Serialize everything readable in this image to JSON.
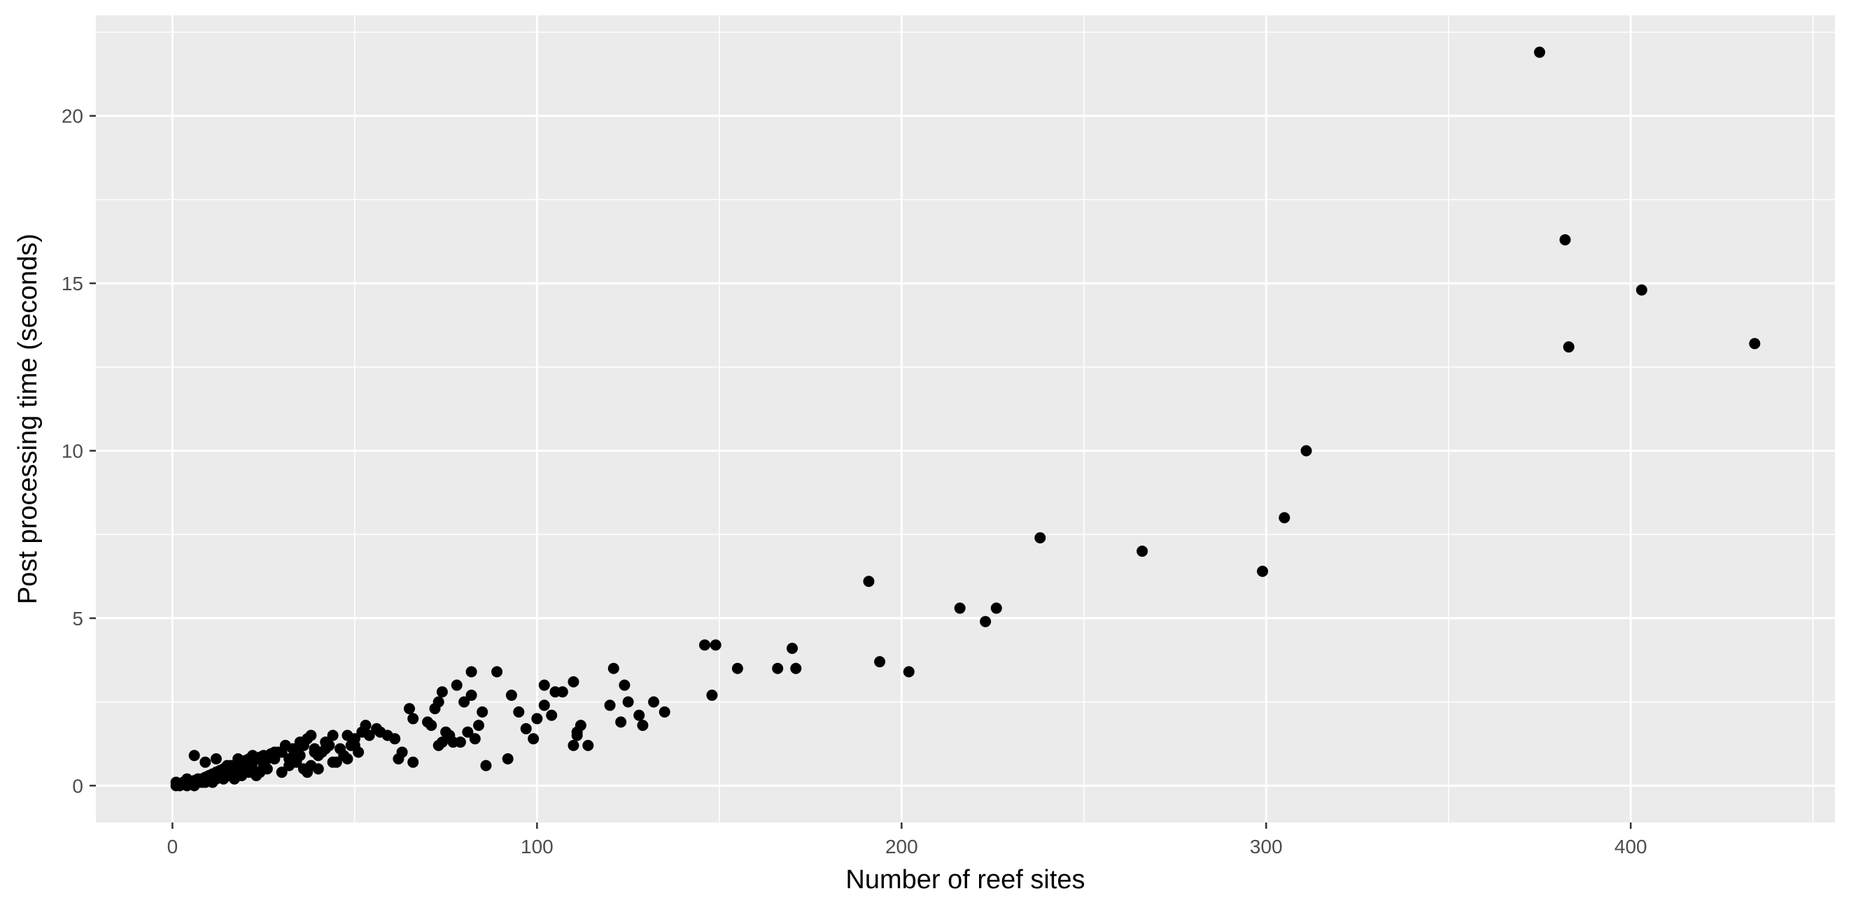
{
  "chart_data": {
    "type": "scatter",
    "title": "",
    "xlabel": "Number of reef sites",
    "ylabel": "Post processing time (seconds)",
    "xlim": [
      -21,
      456
    ],
    "ylim": [
      -1.1,
      23.0
    ],
    "x_ticks": [
      0,
      100,
      200,
      300,
      400
    ],
    "y_ticks": [
      0,
      5,
      10,
      15,
      20
    ],
    "grid": true,
    "legend": "none",
    "colors": {
      "panel": "#EBEBEB",
      "grid": "#FFFFFF",
      "points": "#000000",
      "ticks": "#333333"
    },
    "series": [
      {
        "x": [
          375,
          382,
          383,
          403,
          434,
          311,
          305,
          299,
          266,
          238,
          226,
          223,
          216,
          191,
          194,
          202,
          146,
          149,
          148,
          155,
          166,
          170,
          171,
          121,
          124,
          125,
          120,
          123,
          128,
          129,
          132,
          135,
          110,
          111,
          112,
          114,
          111,
          102,
          105,
          107,
          110,
          93,
          95,
          97,
          99,
          100,
          92,
          102,
          104,
          89,
          86,
          82,
          82,
          78,
          74,
          73,
          72,
          70,
          71,
          80,
          81,
          84,
          85,
          83,
          79,
          74,
          75,
          77,
          76,
          73,
          65,
          66,
          61,
          59,
          57,
          56,
          54,
          53,
          52,
          50,
          49,
          48,
          46,
          44,
          62,
          63,
          66,
          45,
          47,
          50,
          51,
          48,
          42,
          43,
          44,
          41,
          40,
          39,
          38,
          37,
          36,
          35,
          34,
          33,
          32,
          31,
          30,
          40,
          38,
          36,
          34,
          32,
          30,
          28,
          26,
          25,
          24,
          23,
          22,
          21,
          20,
          19,
          18,
          17,
          16,
          15,
          14,
          13,
          12,
          11,
          10,
          9,
          8,
          7,
          6,
          5,
          4,
          3,
          2,
          1,
          1,
          2,
          3,
          4,
          5,
          6,
          7,
          8,
          9,
          10,
          11,
          12,
          13,
          14,
          15,
          16,
          17,
          18,
          19,
          20,
          21,
          22,
          23,
          24,
          25,
          26,
          27,
          28,
          29,
          6,
          9,
          12,
          15,
          18,
          22,
          25,
          28,
          31,
          35,
          37,
          39,
          42
        ],
        "y": [
          21.9,
          16.3,
          13.1,
          14.8,
          13.2,
          10.0,
          8.0,
          6.4,
          7.0,
          7.4,
          5.3,
          4.9,
          5.3,
          6.1,
          3.7,
          3.4,
          4.2,
          4.2,
          2.7,
          3.5,
          3.5,
          4.1,
          3.5,
          3.5,
          3.0,
          2.5,
          2.4,
          1.9,
          2.1,
          1.8,
          2.5,
          2.2,
          1.2,
          1.5,
          1.8,
          1.2,
          1.6,
          3.0,
          2.8,
          2.8,
          3.1,
          2.7,
          2.2,
          1.7,
          1.4,
          2.0,
          0.8,
          2.4,
          2.1,
          3.4,
          0.6,
          3.4,
          2.7,
          3.0,
          2.8,
          2.5,
          2.3,
          1.9,
          1.8,
          2.5,
          1.6,
          1.8,
          2.2,
          1.4,
          1.3,
          1.3,
          1.6,
          1.3,
          1.5,
          1.2,
          2.3,
          2.0,
          1.4,
          1.5,
          1.6,
          1.7,
          1.5,
          1.8,
          1.6,
          1.4,
          1.2,
          1.5,
          1.1,
          1.5,
          0.8,
          1.0,
          0.7,
          0.7,
          0.9,
          1.2,
          1.0,
          0.8,
          1.1,
          1.2,
          0.7,
          1.0,
          0.9,
          1.0,
          1.5,
          1.4,
          1.2,
          0.9,
          1.0,
          1.1,
          0.8,
          1.2,
          1.0,
          0.5,
          0.6,
          0.5,
          0.7,
          0.6,
          0.4,
          0.8,
          0.5,
          0.6,
          0.4,
          0.3,
          0.5,
          0.4,
          0.6,
          0.3,
          0.4,
          0.2,
          0.3,
          0.4,
          0.2,
          0.3,
          0.2,
          0.1,
          0.2,
          0.1,
          0.2,
          0.1,
          0.0,
          0.1,
          0.0,
          0.1,
          0.0,
          0.0,
          0.1,
          0.05,
          0.1,
          0.2,
          0.05,
          0.15,
          0.2,
          0.1,
          0.25,
          0.3,
          0.35,
          0.4,
          0.45,
          0.5,
          0.55,
          0.6,
          0.6,
          0.65,
          0.7,
          0.75,
          0.8,
          0.7,
          0.8,
          0.85,
          0.9,
          0.8,
          0.95,
          1.0,
          1.0,
          0.9,
          0.7,
          0.8,
          0.6,
          0.8,
          0.9,
          0.7,
          0.8,
          1.2,
          1.3,
          0.4,
          1.1,
          1.3
        ]
      }
    ]
  }
}
